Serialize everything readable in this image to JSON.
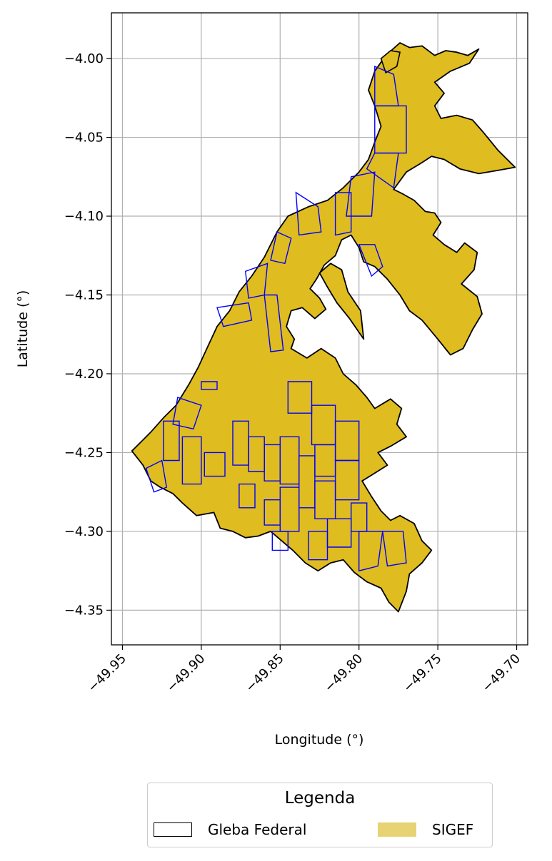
{
  "chart_data": {
    "type": "map",
    "xlabel": "Longitude (°)",
    "ylabel": "Latitude (°)",
    "xlim": [
      -49.957,
      -49.693
    ],
    "ylim": [
      -4.372,
      -3.971
    ],
    "xticks": [
      -49.95,
      -49.9,
      -49.85,
      -49.8,
      -49.75,
      -49.7
    ],
    "xtick_labels": [
      "−49.95",
      "−49.90",
      "−49.85",
      "−49.80",
      "−49.75",
      "−49.70"
    ],
    "yticks": [
      -4.0,
      -4.05,
      -4.1,
      -4.15,
      -4.2,
      -4.25,
      -4.3,
      -4.35
    ],
    "ytick_labels": [
      "−4.00",
      "−4.05",
      "−4.10",
      "−4.15",
      "−4.20",
      "−4.25",
      "−4.30",
      "−4.35"
    ],
    "grid": true,
    "gleba_outline": [
      [
        -49.774,
        -3.99
      ],
      [
        -49.768,
        -3.993
      ],
      [
        -49.76,
        -3.992
      ],
      [
        -49.752,
        -3.998
      ],
      [
        -49.745,
        -3.995
      ],
      [
        -49.738,
        -3.996
      ],
      [
        -49.731,
        -3.998
      ],
      [
        -49.724,
        -3.994
      ],
      [
        -49.73,
        -4.003
      ],
      [
        -49.742,
        -4.008
      ],
      [
        -49.752,
        -4.015
      ],
      [
        -49.746,
        -4.022
      ],
      [
        -49.752,
        -4.03
      ],
      [
        -49.748,
        -4.038
      ],
      [
        -49.738,
        -4.036
      ],
      [
        -49.728,
        -4.039
      ],
      [
        -49.721,
        -4.047
      ],
      [
        -49.712,
        -4.058
      ],
      [
        -49.701,
        -4.069
      ],
      [
        -49.712,
        -4.071
      ],
      [
        -49.724,
        -4.073
      ],
      [
        -49.736,
        -4.07
      ],
      [
        -49.746,
        -4.064
      ],
      [
        -49.754,
        -4.062
      ],
      [
        -49.76,
        -4.066
      ],
      [
        -49.77,
        -4.072
      ],
      [
        -49.778,
        -4.083
      ],
      [
        -49.772,
        -4.086
      ],
      [
        -49.765,
        -4.09
      ],
      [
        -49.758,
        -4.097
      ],
      [
        -49.752,
        -4.098
      ],
      [
        -49.748,
        -4.104
      ],
      [
        -49.753,
        -4.112
      ],
      [
        -49.746,
        -4.118
      ],
      [
        -49.738,
        -4.123
      ],
      [
        -49.733,
        -4.117
      ],
      [
        -49.725,
        -4.123
      ],
      [
        -49.727,
        -4.134
      ],
      [
        -49.735,
        -4.143
      ],
      [
        -49.725,
        -4.151
      ],
      [
        -49.722,
        -4.162
      ],
      [
        -49.728,
        -4.172
      ],
      [
        -49.734,
        -4.184
      ],
      [
        -49.742,
        -4.188
      ],
      [
        -49.75,
        -4.178
      ],
      [
        -49.76,
        -4.166
      ],
      [
        -49.768,
        -4.16
      ],
      [
        -49.774,
        -4.15
      ],
      [
        -49.782,
        -4.14
      ],
      [
        -49.79,
        -4.132
      ],
      [
        -49.797,
        -4.129
      ],
      [
        -49.8,
        -4.12
      ],
      [
        -49.805,
        -4.112
      ],
      [
        -49.811,
        -4.115
      ],
      [
        -49.815,
        -4.125
      ],
      [
        -49.822,
        -4.131
      ],
      [
        -49.827,
        -4.14
      ],
      [
        -49.831,
        -4.146
      ],
      [
        -49.825,
        -4.152
      ],
      [
        -49.821,
        -4.159
      ],
      [
        -49.828,
        -4.165
      ],
      [
        -49.836,
        -4.158
      ],
      [
        -49.843,
        -4.16
      ],
      [
        -49.846,
        -4.17
      ],
      [
        -49.841,
        -4.178
      ],
      [
        -49.843,
        -4.184
      ],
      [
        -49.833,
        -4.19
      ],
      [
        -49.824,
        -4.184
      ],
      [
        -49.815,
        -4.19
      ],
      [
        -49.81,
        -4.2
      ],
      [
        -49.802,
        -4.207
      ],
      [
        -49.795,
        -4.215
      ],
      [
        -49.79,
        -4.222
      ],
      [
        -49.78,
        -4.216
      ],
      [
        -49.773,
        -4.222
      ],
      [
        -49.776,
        -4.232
      ],
      [
        -49.77,
        -4.24
      ],
      [
        -49.78,
        -4.246
      ],
      [
        -49.788,
        -4.25
      ],
      [
        -49.782,
        -4.258
      ],
      [
        -49.79,
        -4.263
      ],
      [
        -49.798,
        -4.268
      ],
      [
        -49.792,
        -4.278
      ],
      [
        -49.786,
        -4.287
      ],
      [
        -49.78,
        -4.293
      ],
      [
        -49.774,
        -4.29
      ],
      [
        -49.765,
        -4.295
      ],
      [
        -49.76,
        -4.306
      ],
      [
        -49.754,
        -4.312
      ],
      [
        -49.76,
        -4.32
      ],
      [
        -49.768,
        -4.327
      ],
      [
        -49.77,
        -4.338
      ],
      [
        -49.775,
        -4.351
      ],
      [
        -49.781,
        -4.345
      ],
      [
        -49.786,
        -4.336
      ],
      [
        -49.795,
        -4.332
      ],
      [
        -49.803,
        -4.326
      ],
      [
        -49.81,
        -4.318
      ],
      [
        -49.818,
        -4.32
      ],
      [
        -49.826,
        -4.325
      ],
      [
        -49.834,
        -4.32
      ],
      [
        -49.842,
        -4.312
      ],
      [
        -49.849,
        -4.306
      ],
      [
        -49.856,
        -4.3
      ],
      [
        -49.864,
        -4.303
      ],
      [
        -49.872,
        -4.304
      ],
      [
        -49.88,
        -4.3
      ],
      [
        -49.888,
        -4.298
      ],
      [
        -49.892,
        -4.288
      ],
      [
        -49.903,
        -4.29
      ],
      [
        -49.912,
        -4.282
      ],
      [
        -49.918,
        -4.276
      ],
      [
        -49.926,
        -4.272
      ],
      [
        -49.932,
        -4.268
      ],
      [
        -49.937,
        -4.258
      ],
      [
        -49.944,
        -4.249
      ],
      [
        -49.938,
        -4.243
      ],
      [
        -49.932,
        -4.237
      ],
      [
        -49.924,
        -4.228
      ],
      [
        -49.916,
        -4.22
      ],
      [
        -49.908,
        -4.207
      ],
      [
        -49.902,
        -4.196
      ],
      [
        -49.896,
        -4.183
      ],
      [
        -49.89,
        -4.17
      ],
      [
        -49.882,
        -4.16
      ],
      [
        -49.876,
        -4.148
      ],
      [
        -49.868,
        -4.138
      ],
      [
        -49.86,
        -4.126
      ],
      [
        -49.852,
        -4.11
      ],
      [
        -49.845,
        -4.1
      ],
      [
        -49.832,
        -4.094
      ],
      [
        -49.82,
        -4.09
      ],
      [
        -49.81,
        -4.082
      ],
      [
        -49.8,
        -4.072
      ],
      [
        -49.794,
        -4.064
      ],
      [
        -49.79,
        -4.053
      ],
      [
        -49.786,
        -4.043
      ],
      [
        -49.79,
        -4.03
      ],
      [
        -49.794,
        -4.02
      ],
      [
        -49.79,
        -4.008
      ],
      [
        -49.783,
        -3.998
      ],
      [
        -49.774,
        -3.99
      ]
    ],
    "north_blob": [
      [
        -49.786,
        -4.0
      ],
      [
        -49.78,
        -3.995
      ],
      [
        -49.774,
        -3.996
      ],
      [
        -49.776,
        -4.005
      ],
      [
        -49.783,
        -4.009
      ],
      [
        -49.786,
        -4.0
      ]
    ],
    "hole": [
      [
        -49.797,
        -4.178
      ],
      [
        -49.806,
        -4.165
      ],
      [
        -49.814,
        -4.155
      ],
      [
        -49.82,
        -4.145
      ],
      [
        -49.825,
        -4.136
      ],
      [
        -49.818,
        -4.13
      ],
      [
        -49.811,
        -4.134
      ],
      [
        -49.807,
        -4.148
      ],
      [
        -49.799,
        -4.16
      ],
      [
        -49.797,
        -4.178
      ]
    ],
    "sigef_parcels": [
      [
        [
          -49.79,
          -4.03
        ],
        [
          -49.77,
          -4.03
        ],
        [
          -49.77,
          -4.06
        ],
        [
          -49.79,
          -4.06
        ]
      ],
      [
        [
          -49.79,
          -4.06
        ],
        [
          -49.775,
          -4.06
        ],
        [
          -49.778,
          -4.082
        ],
        [
          -49.795,
          -4.07
        ]
      ],
      [
        [
          -49.805,
          -4.075
        ],
        [
          -49.79,
          -4.072
        ],
        [
          -49.792,
          -4.1
        ],
        [
          -49.808,
          -4.1
        ]
      ],
      [
        [
          -49.815,
          -4.085
        ],
        [
          -49.805,
          -4.085
        ],
        [
          -49.805,
          -4.11
        ],
        [
          -49.815,
          -4.112
        ]
      ],
      [
        [
          -49.79,
          -4.005
        ],
        [
          -49.778,
          -4.01
        ],
        [
          -49.775,
          -4.03
        ],
        [
          -49.79,
          -4.03
        ]
      ],
      [
        [
          -49.8,
          -4.118
        ],
        [
          -49.79,
          -4.118
        ],
        [
          -49.785,
          -4.132
        ],
        [
          -49.792,
          -4.138
        ]
      ],
      [
        [
          -49.84,
          -4.085
        ],
        [
          -49.826,
          -4.094
        ],
        [
          -49.824,
          -4.11
        ],
        [
          -49.838,
          -4.112
        ]
      ],
      [
        [
          -49.852,
          -4.11
        ],
        [
          -49.843,
          -4.114
        ],
        [
          -49.847,
          -4.13
        ],
        [
          -49.856,
          -4.128
        ]
      ],
      [
        [
          -49.872,
          -4.135
        ],
        [
          -49.858,
          -4.13
        ],
        [
          -49.86,
          -4.15
        ],
        [
          -49.87,
          -4.152
        ]
      ],
      [
        [
          -49.89,
          -4.158
        ],
        [
          -49.87,
          -4.155
        ],
        [
          -49.868,
          -4.166
        ],
        [
          -49.886,
          -4.17
        ]
      ],
      [
        [
          -49.86,
          -4.15
        ],
        [
          -49.852,
          -4.15
        ],
        [
          -49.848,
          -4.185
        ],
        [
          -49.856,
          -4.186
        ]
      ],
      [
        [
          -49.9,
          -4.205
        ],
        [
          -49.89,
          -4.205
        ],
        [
          -49.89,
          -4.21
        ],
        [
          -49.9,
          -4.21
        ]
      ],
      [
        [
          -49.845,
          -4.205
        ],
        [
          -49.83,
          -4.205
        ],
        [
          -49.83,
          -4.225
        ],
        [
          -49.845,
          -4.225
        ]
      ],
      [
        [
          -49.83,
          -4.22
        ],
        [
          -49.815,
          -4.22
        ],
        [
          -49.815,
          -4.245
        ],
        [
          -49.83,
          -4.245
        ]
      ],
      [
        [
          -49.815,
          -4.23
        ],
        [
          -49.8,
          -4.23
        ],
        [
          -49.8,
          -4.255
        ],
        [
          -49.815,
          -4.255
        ]
      ],
      [
        [
          -49.828,
          -4.245
        ],
        [
          -49.815,
          -4.245
        ],
        [
          -49.815,
          -4.265
        ],
        [
          -49.828,
          -4.265
        ]
      ],
      [
        [
          -49.85,
          -4.24
        ],
        [
          -49.838,
          -4.24
        ],
        [
          -49.838,
          -4.27
        ],
        [
          -49.85,
          -4.27
        ]
      ],
      [
        [
          -49.838,
          -4.252
        ],
        [
          -49.828,
          -4.252
        ],
        [
          -49.828,
          -4.285
        ],
        [
          -49.838,
          -4.285
        ]
      ],
      [
        [
          -49.86,
          -4.245
        ],
        [
          -49.85,
          -4.245
        ],
        [
          -49.85,
          -4.268
        ],
        [
          -49.86,
          -4.268
        ]
      ],
      [
        [
          -49.87,
          -4.24
        ],
        [
          -49.86,
          -4.24
        ],
        [
          -49.86,
          -4.262
        ],
        [
          -49.87,
          -4.262
        ]
      ],
      [
        [
          -49.88,
          -4.23
        ],
        [
          -49.87,
          -4.23
        ],
        [
          -49.87,
          -4.258
        ],
        [
          -49.88,
          -4.258
        ]
      ],
      [
        [
          -49.898,
          -4.25
        ],
        [
          -49.885,
          -4.25
        ],
        [
          -49.885,
          -4.265
        ],
        [
          -49.898,
          -4.265
        ]
      ],
      [
        [
          -49.912,
          -4.24
        ],
        [
          -49.9,
          -4.24
        ],
        [
          -49.9,
          -4.27
        ],
        [
          -49.912,
          -4.27
        ]
      ],
      [
        [
          -49.924,
          -4.23
        ],
        [
          -49.914,
          -4.23
        ],
        [
          -49.914,
          -4.255
        ],
        [
          -49.924,
          -4.255
        ]
      ],
      [
        [
          -49.935,
          -4.26
        ],
        [
          -49.925,
          -4.255
        ],
        [
          -49.922,
          -4.272
        ],
        [
          -49.93,
          -4.275
        ]
      ],
      [
        [
          -49.915,
          -4.215
        ],
        [
          -49.9,
          -4.22
        ],
        [
          -49.905,
          -4.235
        ],
        [
          -49.918,
          -4.232
        ]
      ],
      [
        [
          -49.815,
          -4.255
        ],
        [
          -49.8,
          -4.255
        ],
        [
          -49.8,
          -4.28
        ],
        [
          -49.815,
          -4.28
        ]
      ],
      [
        [
          -49.828,
          -4.268
        ],
        [
          -49.815,
          -4.268
        ],
        [
          -49.815,
          -4.292
        ],
        [
          -49.828,
          -4.292
        ]
      ],
      [
        [
          -49.85,
          -4.272
        ],
        [
          -49.838,
          -4.272
        ],
        [
          -49.838,
          -4.3
        ],
        [
          -49.85,
          -4.3
        ]
      ],
      [
        [
          -49.82,
          -4.292
        ],
        [
          -49.805,
          -4.292
        ],
        [
          -49.805,
          -4.31
        ],
        [
          -49.82,
          -4.31
        ]
      ],
      [
        [
          -49.805,
          -4.282
        ],
        [
          -49.795,
          -4.282
        ],
        [
          -49.795,
          -4.3
        ],
        [
          -49.805,
          -4.3
        ]
      ],
      [
        [
          -49.8,
          -4.3
        ],
        [
          -49.785,
          -4.3
        ],
        [
          -49.788,
          -4.322
        ],
        [
          -49.8,
          -4.325
        ]
      ],
      [
        [
          -49.785,
          -4.3
        ],
        [
          -49.772,
          -4.3
        ],
        [
          -49.77,
          -4.32
        ],
        [
          -49.782,
          -4.322
        ]
      ],
      [
        [
          -49.832,
          -4.3
        ],
        [
          -49.82,
          -4.3
        ],
        [
          -49.82,
          -4.318
        ],
        [
          -49.832,
          -4.318
        ]
      ],
      [
        [
          -49.855,
          -4.3
        ],
        [
          -49.845,
          -4.3
        ],
        [
          -49.845,
          -4.312
        ],
        [
          -49.855,
          -4.312
        ]
      ],
      [
        [
          -49.876,
          -4.27
        ],
        [
          -49.866,
          -4.27
        ],
        [
          -49.866,
          -4.285
        ],
        [
          -49.876,
          -4.285
        ]
      ],
      [
        [
          -49.86,
          -4.28
        ],
        [
          -49.85,
          -4.28
        ],
        [
          -49.85,
          -4.296
        ],
        [
          -49.86,
          -4.296
        ]
      ]
    ],
    "legend": {
      "title": "Legenda",
      "placement": "bottom-center",
      "items": [
        {
          "label": "Gleba Federal",
          "fill": "#ffffff",
          "edge": "#000000"
        },
        {
          "label": "SIGEF",
          "fill": "#e8d374",
          "edge": "#e8d374"
        }
      ]
    }
  },
  "colors": {
    "land_fill": "#dfbc1f",
    "outline": "#000000",
    "parcel_edge": "#0000ff",
    "grid": "#b0b0b0"
  }
}
